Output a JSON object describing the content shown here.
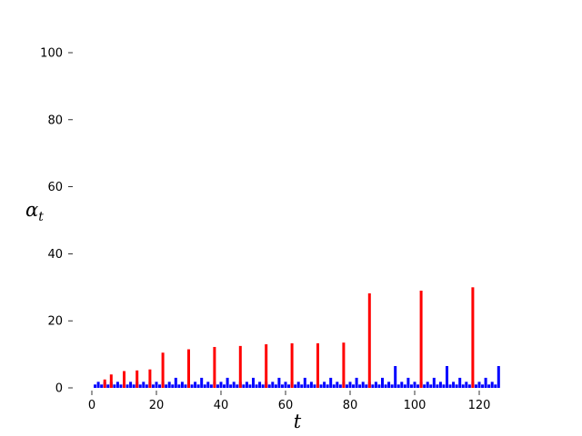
{
  "chart_data": {
    "type": "bar",
    "title": "",
    "xlabel": "t",
    "ylabel": "α",
    "ylabel_subscript": "t",
    "xlim": [
      0,
      127
    ],
    "ylim": [
      0,
      100
    ],
    "xticks": [
      0,
      20,
      40,
      60,
      80,
      100,
      120
    ],
    "yticks": [
      0,
      20,
      40,
      60,
      80,
      100
    ],
    "grid": false,
    "colors": {
      "blue": "#0000ff",
      "red": "#ff0000"
    },
    "series": [
      {
        "color": "#0000ff",
        "x": [
          1,
          2,
          3,
          4,
          5,
          6,
          7,
          8,
          9,
          10,
          11,
          12,
          13,
          14,
          15,
          16,
          17,
          18,
          19,
          20,
          21,
          22,
          23,
          24,
          25,
          26,
          27,
          28,
          29,
          30,
          31,
          32,
          33,
          34,
          35,
          36,
          37,
          38,
          39,
          40,
          41,
          42,
          43,
          44,
          45,
          46,
          47,
          48,
          49,
          50,
          51,
          52,
          53,
          54,
          55,
          56,
          57,
          58,
          59,
          60,
          61,
          62,
          63,
          64,
          65,
          66,
          67,
          68,
          69,
          70,
          71,
          72,
          73,
          74,
          75,
          76,
          77,
          78,
          79,
          80,
          81,
          82,
          83,
          84,
          85,
          86,
          87,
          88,
          89,
          90,
          91,
          92,
          93,
          94,
          95,
          96,
          97,
          98,
          99,
          100,
          101,
          102,
          103,
          104,
          105,
          106,
          107,
          108,
          109,
          110,
          111,
          112,
          113,
          114,
          115,
          116,
          117,
          118,
          119,
          120,
          121,
          122,
          123,
          124,
          125,
          126
        ],
        "values": [
          1,
          1.8,
          1,
          1.8,
          1,
          1.8,
          1,
          1.8,
          1,
          1.8,
          1,
          1.8,
          1,
          1.8,
          1,
          1.8,
          1,
          1.8,
          1,
          1.8,
          1,
          1.8,
          1,
          1.8,
          1,
          3,
          1,
          1.8,
          1,
          1.8,
          1,
          1.8,
          1,
          3,
          1,
          1.8,
          1,
          1.8,
          1,
          1.8,
          1,
          3,
          1,
          1.8,
          1,
          1.8,
          1,
          1.8,
          1,
          3,
          1,
          1.8,
          1,
          1.8,
          1,
          1.8,
          1,
          3,
          1,
          1.8,
          1,
          1.8,
          1,
          1.8,
          1,
          3,
          1,
          1.8,
          1,
          1.8,
          1,
          1.8,
          1,
          3,
          1,
          1.8,
          1,
          1.8,
          1,
          1.8,
          1,
          3,
          1,
          1.8,
          1,
          1.8,
          1,
          1.8,
          1,
          3,
          1,
          1.8,
          1,
          6.5,
          1,
          1.8,
          1,
          3,
          1,
          1.8,
          1,
          1.8,
          1,
          1.8,
          1,
          3,
          1,
          1.8,
          1,
          6.5,
          1,
          1.8,
          1,
          3,
          1,
          1.8,
          1,
          1.8,
          1,
          1.8,
          1,
          3,
          1,
          1.8,
          1,
          6.5
        ]
      },
      {
        "color": "#ff0000",
        "x": [
          4,
          6,
          10,
          14,
          18,
          22,
          30,
          38,
          46,
          54,
          62,
          70,
          78,
          86,
          102,
          118
        ],
        "values": [
          2.5,
          4,
          5,
          5.2,
          5.5,
          10.5,
          11.5,
          12.2,
          12.5,
          13,
          13.3,
          13.3,
          13.5,
          28.2,
          29,
          30
        ]
      }
    ]
  }
}
